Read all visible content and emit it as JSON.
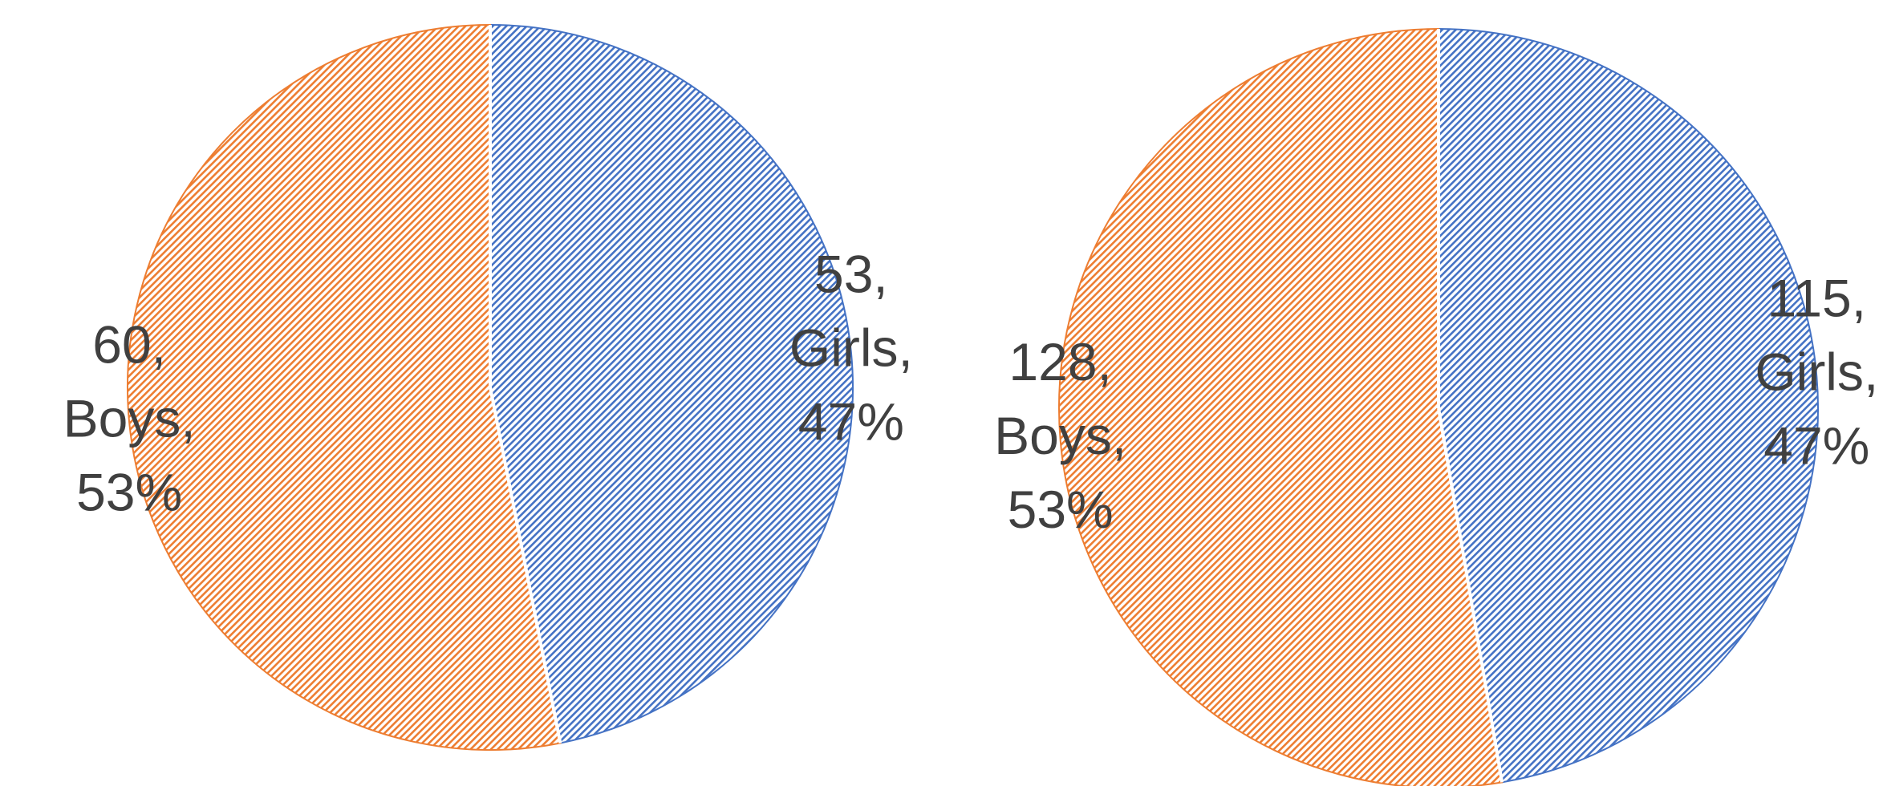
{
  "chart_data": [
    {
      "type": "pie",
      "categories": [
        "Girls",
        "Boys"
      ],
      "values": [
        53,
        60
      ],
      "value_labels": [
        [
          "53,",
          "Girls,",
          "47%"
        ],
        [
          "60,",
          "Boys,",
          "53%"
        ]
      ],
      "colors": [
        "#4472c4",
        "#ed7d31"
      ]
    },
    {
      "type": "pie",
      "categories": [
        "Girls",
        "Boys"
      ],
      "values": [
        115,
        128
      ],
      "value_labels": [
        [
          "115,",
          "Girls,",
          "47%"
        ],
        [
          "128,",
          "Boys,",
          "53%"
        ]
      ],
      "colors": [
        "#4472c4",
        "#ed7d31"
      ]
    }
  ]
}
